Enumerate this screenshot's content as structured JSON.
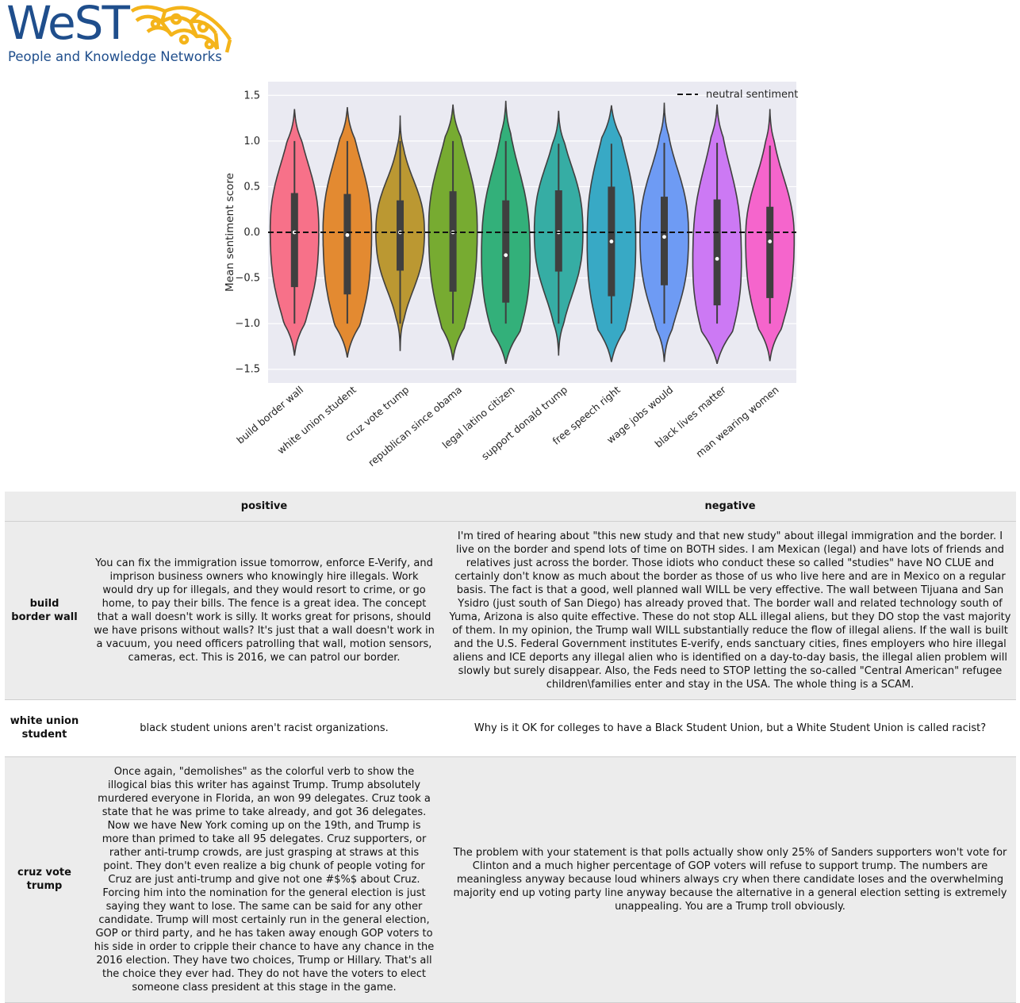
{
  "logo": {
    "wordmark": "WeST",
    "tagline": "People and Knowledge Networks"
  },
  "chart_data": {
    "type": "violin",
    "title": "",
    "xlabel": "",
    "ylabel": "Mean sentiment score",
    "ylim": [
      -1.65,
      1.65
    ],
    "yticks": [
      -1.5,
      -1.0,
      -0.5,
      0.0,
      0.5,
      1.0,
      1.5
    ],
    "ytick_labels": [
      "−1.5",
      "−1.0",
      "−0.5",
      "0.0",
      "0.5",
      "1.0",
      "1.5"
    ],
    "grid": true,
    "legend": {
      "position": "top-right",
      "entries": [
        "neutral sentiment"
      ]
    },
    "reference_line": {
      "y": 0.0,
      "style": "dashed",
      "label": "neutral sentiment"
    },
    "categories": [
      "build border wall",
      "white union student",
      "cruz vote trump",
      "republican since obama",
      "legal latino citizen",
      "support donald trump",
      "free speech right",
      "wage jobs would",
      "black lives matter",
      "man wearing women"
    ],
    "colors": [
      "#f77189",
      "#e38a31",
      "#bb9832",
      "#77ab31",
      "#33b07a",
      "#36ada4",
      "#38a9c5",
      "#6e9bf4",
      "#cc79f4",
      "#f565cc"
    ],
    "series": [
      {
        "category": "build border wall",
        "min": -1.0,
        "q1": -0.6,
        "median": 0.0,
        "q3": 0.43,
        "max": 1.0,
        "kde_low": -1.35,
        "kde_high": 1.35
      },
      {
        "category": "white union student",
        "min": -1.0,
        "q1": -0.68,
        "median": -0.03,
        "q3": 0.42,
        "max": 1.0,
        "kde_low": -1.37,
        "kde_high": 1.37
      },
      {
        "category": "cruz vote trump",
        "min": -1.0,
        "q1": -0.42,
        "median": 0.0,
        "q3": 0.35,
        "max": 1.0,
        "kde_low": -1.3,
        "kde_high": 1.28
      },
      {
        "category": "republican since obama",
        "min": -1.0,
        "q1": -0.65,
        "median": 0.0,
        "q3": 0.45,
        "max": 1.0,
        "kde_low": -1.4,
        "kde_high": 1.4
      },
      {
        "category": "legal latino citizen",
        "min": -1.0,
        "q1": -0.77,
        "median": -0.25,
        "q3": 0.35,
        "max": 1.0,
        "kde_low": -1.44,
        "kde_high": 1.44
      },
      {
        "category": "support donald trump",
        "min": -1.0,
        "q1": -0.43,
        "median": 0.0,
        "q3": 0.46,
        "max": 0.97,
        "kde_low": -1.35,
        "kde_high": 1.33
      },
      {
        "category": "free speech right",
        "min": -1.0,
        "q1": -0.7,
        "median": -0.1,
        "q3": 0.5,
        "max": 0.97,
        "kde_low": -1.42,
        "kde_high": 1.39
      },
      {
        "category": "wage jobs would",
        "min": -1.0,
        "q1": -0.58,
        "median": -0.05,
        "q3": 0.39,
        "max": 0.98,
        "kde_low": -1.42,
        "kde_high": 1.42
      },
      {
        "category": "black lives matter",
        "min": -1.0,
        "q1": -0.8,
        "median": -0.29,
        "q3": 0.36,
        "max": 0.98,
        "kde_low": -1.44,
        "kde_high": 1.4
      },
      {
        "category": "man wearing women",
        "min": -1.0,
        "q1": -0.72,
        "median": -0.1,
        "q3": 0.28,
        "max": 0.95,
        "kde_low": -1.41,
        "kde_high": 1.35
      }
    ]
  },
  "table": {
    "headers": [
      "",
      "positive",
      "negative"
    ],
    "rows": [
      {
        "topic": "build border wall",
        "positive": "You can fix the immigration issue tomorrow, enforce E-Verify, and imprison business owners who knowingly hire illegals. Work would dry up for illegals, and they would resort to crime, or go home, to pay their bills. The fence is a great idea. The concept that a wall doesn't work is silly. It works great for prisons, should we have prisons without walls? It's just that a wall doesn't work in a vacuum, you need officers patrolling that wall, motion sensors, cameras, ect. This is 2016, we can patrol our border.",
        "negative": "I'm tired of hearing about \"this new study and that new study\" about illegal immigration and the border. I live on the border and spend lots of time on BOTH sides. I am Mexican (legal) and have lots of friends and relatives just across the border. Those idiots who conduct these so called \"studies\" have NO CLUE and certainly don't know as much about the border as those of us who live here and are in Mexico on a regular basis. The fact is that a good, well planned wall WILL be very effective. The wall between Tijuana and San Ysidro (just south of San Diego) has already proved that. The border wall and related technology south of Yuma, Arizona is also quite effective. These do not stop ALL illegal aliens, but they DO stop the vast majority of them. In my opinion, the Trump wall WILL substantially reduce the flow of illegal aliens. If the wall is built and the U.S. Federal Government institutes E-verify, ends sanctuary cities, fines employers who hire illegal aliens and ICE deports any illegal alien who is identified on a day-to-day basis, the illegal alien problem will slowly but surely disappear. Also, the Feds need to STOP letting the so-called \"Central American\" refugee children\\families enter and stay in the USA. The whole thing is a SCAM."
      },
      {
        "topic": "white union student",
        "positive": "black student unions aren't racist organizations.",
        "negative": "Why is it OK for colleges to have a Black Student Union, but a White Student Union is called racist?"
      },
      {
        "topic": "cruz vote trump",
        "positive": "Once again, \"demolishes\" as the colorful verb to show the illogical bias this writer has against Trump. Trump absolutely murdered everyone in Florida, an won 99 delegates. Cruz took a state that he was prime to take already, and got 36 delegates. Now we have New York coming up on the 19th, and Trump is more than primed to take all 95 delegates. Cruz supporters, or rather anti-trump crowds, are just grasping at straws at this point. They don't even realize a big chunk of people voting for Cruz are just anti-trump and give not one #$%$ about Cruz. Forcing him into the nomination for the general election is just saying they want to lose. The same can be said for any other candidate. Trump will most certainly run in the general election, GOP or third party, and he has taken away enough GOP voters to his side in order to cripple their chance to have any chance in the 2016 election. They have two choices, Trump or Hillary. That's all the choice they ever had. They do not have the voters to elect someone class president at this stage in the game.",
        "negative": "The problem with your statement is that polls actually show only 25% of Sanders supporters won't vote for Clinton and a much higher percentage of GOP voters will refuse to support trump. The numbers are meaningless anyway because loud whiners always cry when there candidate loses and the overwhelming majority end up voting party line anyway because the alternative in a general election setting is extremely unappealing. You are a Trump troll obviously."
      }
    ]
  }
}
